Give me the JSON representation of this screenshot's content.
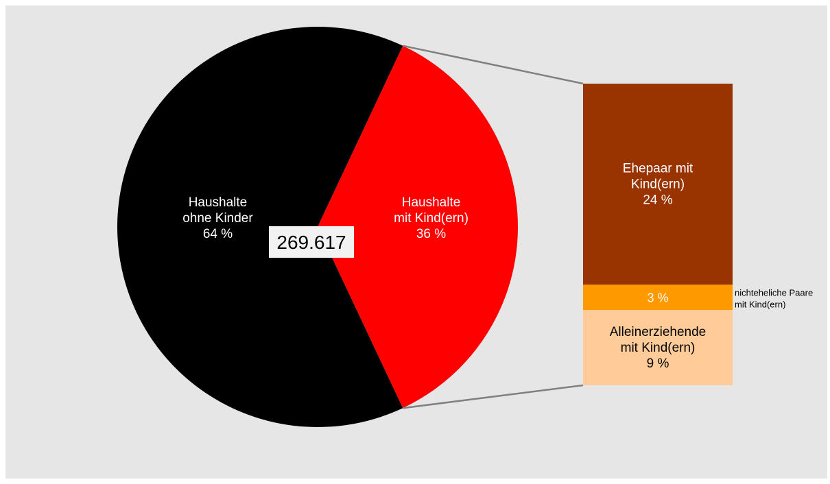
{
  "chart_data": {
    "type": "pie",
    "total_label": "269.617",
    "colors": {
      "background": "#e6e6e6",
      "connector": "#808080",
      "total_box": "#f2f2f2"
    },
    "pie": {
      "slices": [
        {
          "name": "Haushalte ohne Kinder",
          "label_lines": [
            "Haushalte",
            "ohne Kinder"
          ],
          "value": 64,
          "value_label": "64 %",
          "color": "#000000"
        },
        {
          "name": "Haushalte mit Kind(ern)",
          "label_lines": [
            "Haushalte",
            "mit Kind(ern)"
          ],
          "value": 36,
          "value_label": "36 %",
          "color": "#ff0000"
        }
      ]
    },
    "breakdown": {
      "parent": "Haushalte mit Kind(ern)",
      "type": "stacked-bar",
      "segments": [
        {
          "name": "Ehepaar mit Kind(ern)",
          "label_lines": [
            "Ehepaar mit",
            "Kind(ern)"
          ],
          "value": 24,
          "value_label": "24 %",
          "color": "#993300",
          "text_color": "#ffffff",
          "label_position": "inside"
        },
        {
          "name": "nichteheliche Paare mit Kind(ern)",
          "label_lines": [
            "nichteheliche Paare",
            "mit Kind(ern)"
          ],
          "value": 3,
          "value_label": "3 %",
          "color": "#ff9900",
          "text_color": "#ffffff",
          "label_position": "outside-right"
        },
        {
          "name": "Alleinerziehende mit Kind(ern)",
          "label_lines": [
            "Alleinerziehende",
            "mit Kind(ern)"
          ],
          "value": 9,
          "value_label": "9 %",
          "color": "#ffcc99",
          "text_color": "#000000",
          "label_position": "inside"
        }
      ]
    }
  }
}
